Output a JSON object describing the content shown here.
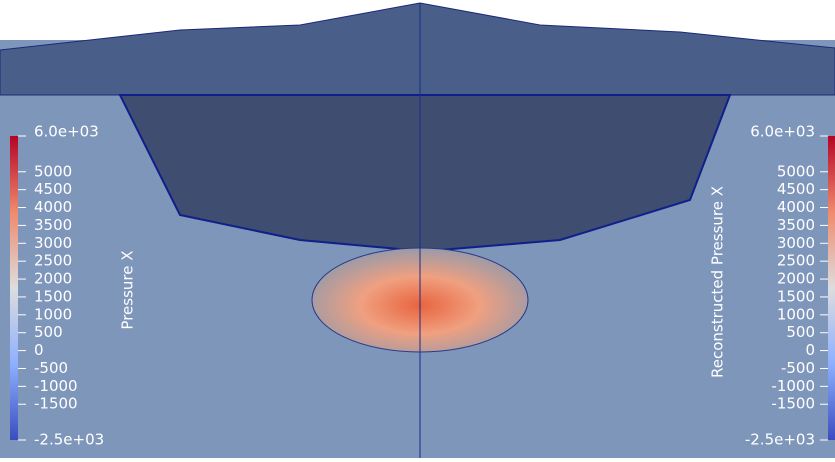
{
  "colorbars": [
    {
      "title": "Pressure X",
      "lim": [
        -2500,
        6000
      ],
      "ticks": [
        {
          "value": 6000,
          "label": "6.0e+03"
        },
        5000,
        4500,
        4000,
        3500,
        3000,
        2500,
        2000,
        1500,
        1000,
        500,
        0,
        -500,
        -1000,
        -1500,
        {
          "value": -2500,
          "label": "-2.5e+03"
        }
      ]
    },
    {
      "title": "Reconstructed Pressure X",
      "lim": [
        -2500,
        6000
      ],
      "ticks": [
        {
          "value": 6000,
          "label": "6.0e+03"
        },
        5000,
        4500,
        4000,
        3500,
        3000,
        2500,
        2000,
        1500,
        1000,
        500,
        0,
        -500,
        -1000,
        -1500,
        {
          "value": -2500,
          "label": "-2.5e+03"
        }
      ]
    }
  ]
}
